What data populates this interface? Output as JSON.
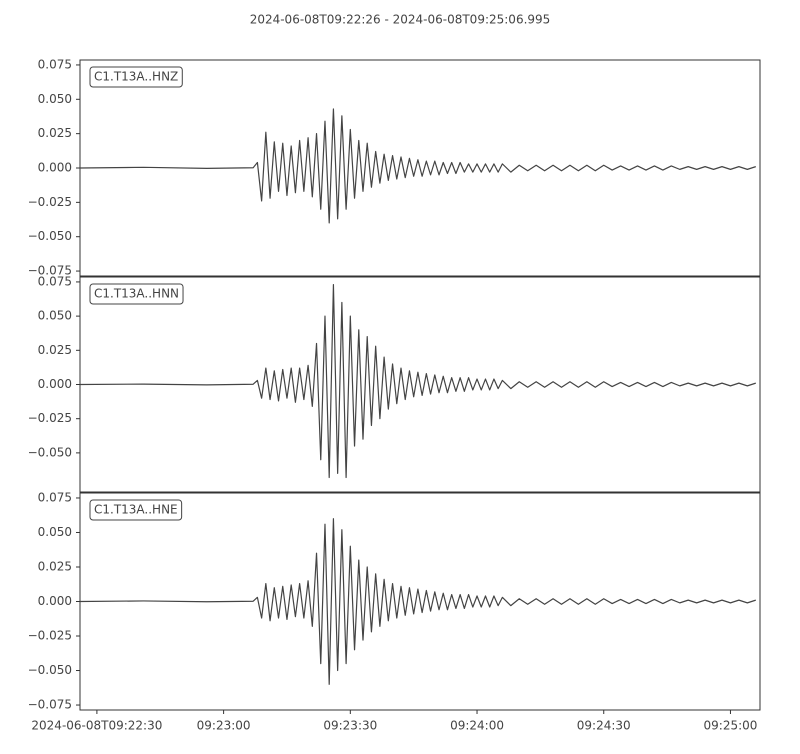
{
  "title": "2024-06-08T09:22:26  -  2024-06-08T09:25:06.995",
  "chart_data": [
    {
      "type": "line",
      "xlim": [
        0,
        160.995
      ],
      "ylim": [
        -0.0786,
        0.0786
      ],
      "yticks": [
        {
          "value": 0.075,
          "label": "0.075"
        },
        {
          "value": 0.05,
          "label": "0.050"
        },
        {
          "value": 0.025,
          "label": "0.025"
        },
        {
          "value": 0,
          "label": "0.000"
        },
        {
          "value": -0.025,
          "label": "−0.025"
        },
        {
          "value": -0.05,
          "label": "−0.050"
        },
        {
          "value": -0.075,
          "label": "−0.075"
        }
      ],
      "x": [
        0,
        15,
        30,
        41,
        42,
        43,
        44,
        45,
        46,
        47,
        48,
        49,
        50,
        51,
        52,
        53,
        54,
        55,
        56,
        57,
        58,
        59,
        60,
        61,
        62,
        63,
        64,
        65,
        66,
        67,
        68,
        69,
        70,
        71,
        72,
        73,
        74,
        75,
        76,
        77,
        78,
        79,
        80,
        81,
        82,
        83,
        84,
        85,
        86,
        87,
        88,
        89,
        90,
        91,
        92,
        93,
        94,
        95,
        96,
        97,
        98,
        99,
        100,
        102,
        104,
        106,
        108,
        110,
        112,
        114,
        116,
        118,
        120,
        122,
        124,
        126,
        128,
        130,
        132,
        134,
        136,
        138,
        140,
        142,
        144,
        146,
        148,
        150,
        152,
        154,
        156,
        158,
        160
      ],
      "series": [
        {
          "name": "C1.T13A..HNZ",
          "color": "#444444",
          "values": [
            0.0,
            0.0005,
            -0.0003,
            0.0002,
            0.004,
            -0.024,
            0.026,
            -0.022,
            0.019,
            -0.017,
            0.018,
            -0.02,
            0.016,
            -0.018,
            0.02,
            -0.017,
            0.022,
            -0.021,
            0.025,
            -0.03,
            0.034,
            -0.04,
            0.043,
            -0.037,
            0.038,
            -0.03,
            0.028,
            -0.022,
            0.02,
            -0.017,
            0.018,
            -0.014,
            0.012,
            -0.011,
            0.01,
            -0.009,
            0.009,
            -0.008,
            0.008,
            -0.007,
            0.007,
            -0.006,
            0.006,
            -0.006,
            0.005,
            -0.005,
            0.005,
            -0.005,
            0.004,
            -0.004,
            0.004,
            -0.004,
            0.004,
            -0.003,
            0.003,
            -0.003,
            0.003,
            -0.003,
            0.003,
            -0.003,
            0.003,
            -0.003,
            0.003,
            -0.003,
            0.002,
            -0.002,
            0.002,
            -0.002,
            0.002,
            -0.002,
            0.002,
            -0.002,
            0.002,
            -0.002,
            0.002,
            -0.0015,
            0.0015,
            -0.0015,
            0.0015,
            -0.0015,
            0.0015,
            -0.0015,
            0.0015,
            -0.001,
            0.001,
            -0.001,
            0.001,
            -0.001,
            0.001,
            -0.001,
            0.001,
            -0.001,
            0.001
          ]
        }
      ]
    },
    {
      "type": "line",
      "xlim": [
        0,
        160.995
      ],
      "ylim": [
        -0.0786,
        0.0786
      ],
      "yticks": [
        {
          "value": 0.075,
          "label": "0.075"
        },
        {
          "value": 0.05,
          "label": "0.050"
        },
        {
          "value": 0.025,
          "label": "0.025"
        },
        {
          "value": 0,
          "label": "0.000"
        },
        {
          "value": -0.025,
          "label": "−0.025"
        },
        {
          "value": -0.05,
          "label": "−0.050"
        }
      ],
      "x": [
        0,
        15,
        30,
        41,
        42,
        43,
        44,
        45,
        46,
        47,
        48,
        49,
        50,
        51,
        52,
        53,
        54,
        55,
        56,
        57,
        58,
        59,
        60,
        61,
        62,
        63,
        64,
        65,
        66,
        67,
        68,
        69,
        70,
        71,
        72,
        73,
        74,
        75,
        76,
        77,
        78,
        79,
        80,
        81,
        82,
        83,
        84,
        85,
        86,
        87,
        88,
        89,
        90,
        91,
        92,
        93,
        94,
        95,
        96,
        97,
        98,
        99,
        100,
        102,
        104,
        106,
        108,
        110,
        112,
        114,
        116,
        118,
        120,
        122,
        124,
        126,
        128,
        130,
        132,
        134,
        136,
        138,
        140,
        142,
        144,
        146,
        148,
        150,
        152,
        154,
        156,
        158,
        160
      ],
      "series": [
        {
          "name": "C1.T13A..HNN",
          "color": "#444444",
          "values": [
            0.0,
            0.0003,
            -0.0003,
            0.0002,
            0.003,
            -0.01,
            0.012,
            -0.011,
            0.01,
            -0.012,
            0.011,
            -0.01,
            0.012,
            -0.013,
            0.012,
            -0.011,
            0.014,
            -0.016,
            0.03,
            -0.055,
            0.05,
            -0.068,
            0.073,
            -0.065,
            0.06,
            -0.068,
            0.05,
            -0.045,
            0.04,
            -0.04,
            0.035,
            -0.03,
            0.028,
            -0.025,
            0.02,
            -0.018,
            0.015,
            -0.014,
            0.012,
            -0.011,
            0.01,
            -0.009,
            0.009,
            -0.008,
            0.008,
            -0.007,
            0.007,
            -0.006,
            0.006,
            -0.006,
            0.005,
            -0.005,
            0.005,
            -0.005,
            0.005,
            -0.004,
            0.004,
            -0.004,
            0.004,
            -0.004,
            0.004,
            -0.003,
            0.003,
            -0.003,
            0.002,
            -0.002,
            0.002,
            -0.002,
            0.002,
            -0.002,
            0.002,
            -0.002,
            0.002,
            -0.002,
            0.002,
            -0.0015,
            0.0015,
            -0.0015,
            0.0015,
            -0.0015,
            0.0015,
            -0.0015,
            0.0015,
            -0.001,
            0.001,
            -0.001,
            0.001,
            -0.001,
            0.001,
            -0.001,
            0.001,
            -0.001,
            0.001
          ]
        }
      ]
    },
    {
      "type": "line",
      "xlim": [
        0,
        160.995
      ],
      "ylim": [
        -0.0786,
        0.0786
      ],
      "yticks": [
        {
          "value": 0.075,
          "label": "0.075"
        },
        {
          "value": 0.05,
          "label": "0.050"
        },
        {
          "value": 0.025,
          "label": "0.025"
        },
        {
          "value": 0,
          "label": "0.000"
        },
        {
          "value": -0.025,
          "label": "−0.025"
        },
        {
          "value": -0.05,
          "label": "−0.050"
        },
        {
          "value": -0.075,
          "label": "−0.075"
        }
      ],
      "xticks": [
        {
          "value": 4,
          "label": "2024-06-08T09:22:30"
        },
        {
          "value": 34,
          "label": "09:23:00"
        },
        {
          "value": 64,
          "label": "09:23:30"
        },
        {
          "value": 94,
          "label": "09:24:00"
        },
        {
          "value": 124,
          "label": "09:24:30"
        },
        {
          "value": 154,
          "label": "09:25:00"
        }
      ],
      "x": [
        0,
        15,
        30,
        41,
        42,
        43,
        44,
        45,
        46,
        47,
        48,
        49,
        50,
        51,
        52,
        53,
        54,
        55,
        56,
        57,
        58,
        59,
        60,
        61,
        62,
        63,
        64,
        65,
        66,
        67,
        68,
        69,
        70,
        71,
        72,
        73,
        74,
        75,
        76,
        77,
        78,
        79,
        80,
        81,
        82,
        83,
        84,
        85,
        86,
        87,
        88,
        89,
        90,
        91,
        92,
        93,
        94,
        95,
        96,
        97,
        98,
        99,
        100,
        102,
        104,
        106,
        108,
        110,
        112,
        114,
        116,
        118,
        120,
        122,
        124,
        126,
        128,
        130,
        132,
        134,
        136,
        138,
        140,
        142,
        144,
        146,
        148,
        150,
        152,
        154,
        156,
        158,
        160
      ],
      "series": [
        {
          "name": "C1.T13A..HNE",
          "color": "#444444",
          "values": [
            0.0,
            0.0004,
            -0.0002,
            0.0002,
            0.003,
            -0.012,
            0.013,
            -0.014,
            0.01,
            -0.012,
            0.011,
            -0.013,
            0.012,
            -0.011,
            0.013,
            -0.012,
            0.015,
            -0.018,
            0.035,
            -0.045,
            0.056,
            -0.06,
            0.06,
            -0.05,
            0.052,
            -0.045,
            0.04,
            -0.035,
            0.03,
            -0.028,
            0.025,
            -0.022,
            0.02,
            -0.018,
            0.016,
            -0.014,
            0.013,
            -0.012,
            0.011,
            -0.01,
            0.01,
            -0.009,
            0.009,
            -0.008,
            0.008,
            -0.007,
            0.007,
            -0.006,
            0.006,
            -0.006,
            0.005,
            -0.005,
            0.005,
            -0.005,
            0.005,
            -0.004,
            0.004,
            -0.004,
            0.004,
            -0.004,
            0.004,
            -0.003,
            0.003,
            -0.003,
            0.002,
            -0.002,
            0.002,
            -0.002,
            0.002,
            -0.002,
            0.002,
            -0.002,
            0.002,
            -0.002,
            0.002,
            -0.0015,
            0.0015,
            -0.0015,
            0.0015,
            -0.0015,
            0.0015,
            -0.0015,
            0.0015,
            -0.001,
            0.001,
            -0.001,
            0.001,
            -0.001,
            0.001,
            -0.001,
            0.001,
            -0.001,
            0.001
          ]
        }
      ]
    }
  ]
}
